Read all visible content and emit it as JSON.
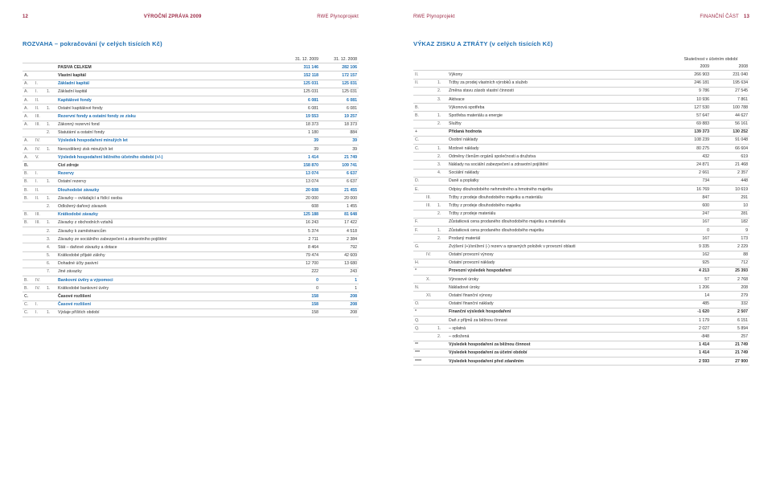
{
  "header": {
    "page_left_num": "12",
    "page_right_num": "13",
    "report_title": "VÝROČNÍ ZPRÁVA 2009",
    "company": "RWE Plynoprojekt",
    "section": "FINANČNÍ ČÁST"
  },
  "left_table": {
    "title": "ROZVAHA – pokračování (v celých tisících Kč)",
    "col_headers": [
      "31. 12. 2009",
      "31. 12. 2008"
    ],
    "rows": [
      {
        "c1": "",
        "c2": "",
        "c3": "",
        "label": "PASIVA CELKEM",
        "v1": "311 146",
        "v2": "282 106",
        "cls": "bold"
      },
      {
        "c1": "A.",
        "c2": "",
        "c3": "",
        "label": "Vlastní kapitál",
        "v1": "152 118",
        "v2": "172 157",
        "cls": "bold"
      },
      {
        "c1": "A.",
        "c2": "I.",
        "c3": "",
        "label": "Základní kapitál",
        "v1": "125 031",
        "v2": "125 031",
        "cls": "semi"
      },
      {
        "c1": "A.",
        "c2": "I.",
        "c3": "1.",
        "label": "Základní kapitál",
        "v1": "125 031",
        "v2": "125 031"
      },
      {
        "c1": "A.",
        "c2": "II.",
        "c3": "",
        "label": "Kapitálové fondy",
        "v1": "6 081",
        "v2": "6 081",
        "cls": "semi"
      },
      {
        "c1": "A.",
        "c2": "II.",
        "c3": "1.",
        "label": "Ostatní kapitálové fondy",
        "v1": "6 081",
        "v2": "6 081"
      },
      {
        "c1": "A.",
        "c2": "III.",
        "c3": "",
        "label": "Rezervní fondy a ostatní fondy ze zisku",
        "v1": "19 553",
        "v2": "19 257",
        "cls": "semi"
      },
      {
        "c1": "A.",
        "c2": "III.",
        "c3": "1.",
        "label": "Zákonný rezervní fond",
        "v1": "18 373",
        "v2": "18 373"
      },
      {
        "c1": "",
        "c2": "",
        "c3": "2.",
        "label": "Statutární a ostatní fondy",
        "v1": "1 180",
        "v2": "884"
      },
      {
        "c1": "A.",
        "c2": "IV.",
        "c3": "",
        "label": "Výsledek hospodaření minulých let",
        "v1": "39",
        "v2": "39",
        "cls": "semi"
      },
      {
        "c1": "A.",
        "c2": "IV.",
        "c3": "1.",
        "label": "Nerozdělený zisk minulých let",
        "v1": "39",
        "v2": "39"
      },
      {
        "c1": "A.",
        "c2": "V.",
        "c3": "",
        "label": "Výsledek hospodaření běžného účetního období (+/-)",
        "v1": "1 414",
        "v2": "21 749",
        "cls": "semi"
      },
      {
        "c1": "B.",
        "c2": "",
        "c3": "",
        "label": "Cizí zdroje",
        "v1": "158 870",
        "v2": "109 741",
        "cls": "bold"
      },
      {
        "c1": "B.",
        "c2": "I.",
        "c3": "",
        "label": "Rezervy",
        "v1": "13 074",
        "v2": "6 637",
        "cls": "semi"
      },
      {
        "c1": "B.",
        "c2": "I.",
        "c3": "1.",
        "label": "Ostatní rezervy",
        "v1": "13 074",
        "v2": "6 637"
      },
      {
        "c1": "B.",
        "c2": "II.",
        "c3": "",
        "label": "Dlouhodobé závazky",
        "v1": "20 608",
        "v2": "21 455",
        "cls": "semi"
      },
      {
        "c1": "B.",
        "c2": "II.",
        "c3": "1.",
        "label": "Závazky – ovládající a řídící osoba",
        "v1": "20 000",
        "v2": "20 000"
      },
      {
        "c1": "",
        "c2": "",
        "c3": "2.",
        "label": "Odložený daňový závazek",
        "v1": "608",
        "v2": "1 455"
      },
      {
        "c1": "B.",
        "c2": "III.",
        "c3": "",
        "label": "Krátkodobé závazky",
        "v1": "125 188",
        "v2": "81 648",
        "cls": "semi"
      },
      {
        "c1": "B.",
        "c2": "III.",
        "c3": "1.",
        "label": "Závazky z obchodních vztahů",
        "v1": "16 243",
        "v2": "17 422"
      },
      {
        "c1": "",
        "c2": "",
        "c3": "2.",
        "label": "Závazky k zaměstnancům",
        "v1": "5 374",
        "v2": "4 518"
      },
      {
        "c1": "",
        "c2": "",
        "c3": "3.",
        "label": "Závazky ze sociálního zabezpečení a zdravotního pojištění",
        "v1": "2 711",
        "v2": "2 384"
      },
      {
        "c1": "",
        "c2": "",
        "c3": "4.",
        "label": "Stát – daňové závazky a dotace",
        "v1": "8 464",
        "v2": "792"
      },
      {
        "c1": "",
        "c2": "",
        "c3": "5.",
        "label": "Krátkodobé přijaté zálohy",
        "v1": "79 474",
        "v2": "42 609"
      },
      {
        "c1": "",
        "c2": "",
        "c3": "6.",
        "label": "Dohadné účty pasivní",
        "v1": "12 700",
        "v2": "13 680"
      },
      {
        "c1": "",
        "c2": "",
        "c3": "7.",
        "label": "Jiné závazky",
        "v1": "222",
        "v2": "243"
      },
      {
        "c1": "B.",
        "c2": "IV.",
        "c3": "",
        "label": "Bankovní úvěry a výpomoci",
        "v1": "0",
        "v2": "1",
        "cls": "semi"
      },
      {
        "c1": "B.",
        "c2": "IV.",
        "c3": "1.",
        "label": "Krátkodobé bankovní úvěry",
        "v1": "0",
        "v2": "1"
      },
      {
        "c1": "C.",
        "c2": "",
        "c3": "",
        "label": "Časové rozlišení",
        "v1": "158",
        "v2": "208",
        "cls": "bold"
      },
      {
        "c1": "C.",
        "c2": "I.",
        "c3": "",
        "label": "Časové rozlišení",
        "v1": "158",
        "v2": "208",
        "cls": "semi"
      },
      {
        "c1": "C.",
        "c2": "I.",
        "c3": "1.",
        "label": "Výdaje příštích období",
        "v1": "158",
        "v2": "208"
      }
    ]
  },
  "right_table": {
    "title": "VÝKAZ ZISKU A ZTRÁTY (v celých tisících Kč)",
    "super_header": "Skutečnost v účetním období",
    "col_headers": [
      "2009",
      "2008"
    ],
    "rows": [
      {
        "c1": "II.",
        "c2": "",
        "c3": "",
        "label": "Výkony",
        "v1": "266 903",
        "v2": "231 040"
      },
      {
        "c1": "II.",
        "c2": "",
        "c3": "1.",
        "label": "Tržby za prodej vlastních výrobků a služeb",
        "v1": "246 181",
        "v2": "195 634"
      },
      {
        "c1": "",
        "c2": "",
        "c3": "2.",
        "label": "Změna stavu zásob vlastní činnosti",
        "v1": "9 786",
        "v2": "27 545"
      },
      {
        "c1": "",
        "c2": "",
        "c3": "3.",
        "label": "Aktivace",
        "v1": "10 936",
        "v2": "7 861"
      },
      {
        "c1": "B.",
        "c2": "",
        "c3": "",
        "label": "Výkonová spotřeba",
        "v1": "127 530",
        "v2": "100 788"
      },
      {
        "c1": "B.",
        "c2": "",
        "c3": "1.",
        "label": "Spotřeba materiálu a energie",
        "v1": "57 647",
        "v2": "44 627"
      },
      {
        "c1": "",
        "c2": "",
        "c3": "2.",
        "label": "Služby",
        "v1": "69 883",
        "v2": "56 161"
      },
      {
        "c1": "+",
        "c2": "",
        "c3": "",
        "label": "Přidaná hodnota",
        "v1": "139 373",
        "v2": "130 252",
        "cls": "plus"
      },
      {
        "c1": "C.",
        "c2": "",
        "c3": "",
        "label": "Osobní náklady",
        "v1": "108 239",
        "v2": "91 048"
      },
      {
        "c1": "C.",
        "c2": "",
        "c3": "1.",
        "label": "Mzdové náklady",
        "v1": "80 275",
        "v2": "66 604"
      },
      {
        "c1": "",
        "c2": "",
        "c3": "2.",
        "label": "Odměny členům orgánů společnosti a družstva",
        "v1": "432",
        "v2": "619"
      },
      {
        "c1": "",
        "c2": "",
        "c3": "3.",
        "label": "Náklady na sociální zabezpečení a zdravotní pojištění",
        "v1": "24 871",
        "v2": "21 468"
      },
      {
        "c1": "",
        "c2": "",
        "c3": "4.",
        "label": "Sociální náklady",
        "v1": "2 661",
        "v2": "2 357"
      },
      {
        "c1": "D.",
        "c2": "",
        "c3": "",
        "label": "Daně a poplatky",
        "v1": "734",
        "v2": "448"
      },
      {
        "c1": "E.",
        "c2": "",
        "c3": "",
        "label": "Odpisy dlouhodobého nehmotného a hmotného majetku",
        "v1": "16 769",
        "v2": "10 619"
      },
      {
        "c1": "",
        "c2": "III.",
        "c3": "",
        "label": "Tržby z prodeje dlouhodobého majetku a materiálu",
        "v1": "847",
        "v2": "291"
      },
      {
        "c1": "",
        "c2": "III.",
        "c3": "1.",
        "label": "Tržby z prodeje dlouhodobého majetku",
        "v1": "600",
        "v2": "10"
      },
      {
        "c1": "",
        "c2": "",
        "c3": "2.",
        "label": "Tržby z prodeje materiálu",
        "v1": "247",
        "v2": "281"
      },
      {
        "c1": "F.",
        "c2": "",
        "c3": "",
        "label": "Zůstatková cena prodaného dlouhodobého majetku a materiálu",
        "v1": "167",
        "v2": "182"
      },
      {
        "c1": "F.",
        "c2": "",
        "c3": "1.",
        "label": "Zůstatková cena prodaného dlouhodobého majetku",
        "v1": "0",
        "v2": "9"
      },
      {
        "c1": "",
        "c2": "",
        "c3": "2.",
        "label": "Prodaný materiál",
        "v1": "167",
        "v2": "173"
      },
      {
        "c1": "G.",
        "c2": "",
        "c3": "",
        "label": "Zvýšení (+)/snížení (-) rezerv a opravných položek v provozní oblasti",
        "v1": "9 335",
        "v2": "2 229"
      },
      {
        "c1": "",
        "c2": "IV.",
        "c3": "",
        "label": "Ostatní provozní výnosy",
        "v1": "162",
        "v2": "88"
      },
      {
        "c1": "H.",
        "c2": "",
        "c3": "",
        "label": "Ostatní provozní náklady",
        "v1": "925",
        "v2": "712"
      },
      {
        "c1": "*",
        "c2": "",
        "c3": "",
        "label": "Provozní výsledek hospodaření",
        "v1": "4 213",
        "v2": "25 393",
        "cls": "star"
      },
      {
        "c1": "",
        "c2": "X.",
        "c3": "",
        "label": "Výnosové úroky",
        "v1": "57",
        "v2": "2 768"
      },
      {
        "c1": "N.",
        "c2": "",
        "c3": "",
        "label": "Nákladové úroky",
        "v1": "1 206",
        "v2": "208"
      },
      {
        "c1": "",
        "c2": "XI.",
        "c3": "",
        "label": "Ostatní finanční výnosy",
        "v1": "14",
        "v2": "279"
      },
      {
        "c1": "O.",
        "c2": "",
        "c3": "",
        "label": "Ostatní finanční náklady",
        "v1": "485",
        "v2": "332"
      },
      {
        "c1": "*",
        "c2": "",
        "c3": "",
        "label": "Finanční výsledek hospodaření",
        "v1": "-1 620",
        "v2": "2 507",
        "cls": "star"
      },
      {
        "c1": "Q.",
        "c2": "",
        "c3": "",
        "label": "Daň z příjmů za běžnou činnost",
        "v1": "1 179",
        "v2": "6 151"
      },
      {
        "c1": "Q.",
        "c2": "",
        "c3": "1.",
        "label": "– splatná",
        "v1": "2 027",
        "v2": "5 894"
      },
      {
        "c1": "",
        "c2": "",
        "c3": "2.",
        "label": "– odložená",
        "v1": "-848",
        "v2": "257"
      },
      {
        "c1": "**",
        "c2": "",
        "c3": "",
        "label": "Výsledek hospodaření za běžnou činnost",
        "v1": "1 414",
        "v2": "21 749",
        "cls": "star"
      },
      {
        "c1": "***",
        "c2": "",
        "c3": "",
        "label": "Výsledek hospodaření za účetní období",
        "v1": "1 414",
        "v2": "21 749",
        "cls": "star"
      },
      {
        "c1": "****",
        "c2": "",
        "c3": "",
        "label": "Výsledek hospodaření před zdaněním",
        "v1": "2 593",
        "v2": "27 900",
        "cls": "star"
      }
    ]
  },
  "colors": {
    "blue": "#1f6fb2",
    "wine": "#9b2743",
    "grey": "#d0d0d0"
  }
}
